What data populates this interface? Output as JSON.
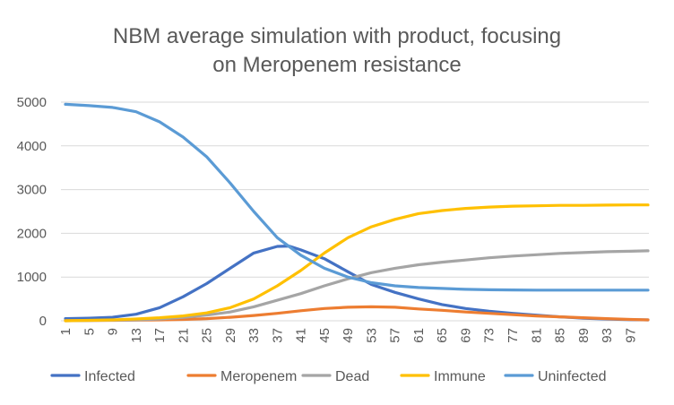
{
  "chart_data": {
    "type": "line",
    "title_lines": [
      "NBM average simulation with product, focusing",
      "on Meropenem resistance"
    ],
    "xlabel": "",
    "ylabel": "",
    "x_range": [
      1,
      100
    ],
    "x_tick_labels": [
      "1",
      "5",
      "9",
      "13",
      "17",
      "21",
      "25",
      "29",
      "33",
      "37",
      "41",
      "45",
      "49",
      "53",
      "57",
      "61",
      "65",
      "69",
      "73",
      "77",
      "81",
      "85",
      "89",
      "93",
      "97"
    ],
    "ylim": [
      0,
      5000
    ],
    "y_tick_labels": [
      "0",
      "1000",
      "2000",
      "3000",
      "4000",
      "5000"
    ],
    "grid": true,
    "legend_position": "bottom",
    "series": [
      {
        "name": "Infected",
        "color": "#4472c4",
        "points": [
          [
            1,
            50
          ],
          [
            5,
            60
          ],
          [
            9,
            80
          ],
          [
            13,
            150
          ],
          [
            17,
            300
          ],
          [
            21,
            550
          ],
          [
            25,
            850
          ],
          [
            29,
            1200
          ],
          [
            33,
            1550
          ],
          [
            37,
            1700
          ],
          [
            39,
            1710
          ],
          [
            41,
            1620
          ],
          [
            45,
            1420
          ],
          [
            49,
            1120
          ],
          [
            53,
            830
          ],
          [
            57,
            650
          ],
          [
            61,
            500
          ],
          [
            65,
            370
          ],
          [
            69,
            280
          ],
          [
            73,
            220
          ],
          [
            77,
            170
          ],
          [
            81,
            130
          ],
          [
            85,
            90
          ],
          [
            89,
            60
          ],
          [
            93,
            40
          ],
          [
            97,
            25
          ],
          [
            100,
            20
          ]
        ]
      },
      {
        "name": "Meropenem",
        "color": "#ed7d31",
        "points": [
          [
            1,
            5
          ],
          [
            9,
            10
          ],
          [
            17,
            20
          ],
          [
            21,
            30
          ],
          [
            25,
            50
          ],
          [
            29,
            80
          ],
          [
            33,
            120
          ],
          [
            37,
            170
          ],
          [
            41,
            230
          ],
          [
            45,
            280
          ],
          [
            49,
            310
          ],
          [
            53,
            320
          ],
          [
            57,
            310
          ],
          [
            61,
            270
          ],
          [
            65,
            240
          ],
          [
            69,
            200
          ],
          [
            73,
            170
          ],
          [
            77,
            140
          ],
          [
            81,
            110
          ],
          [
            85,
            90
          ],
          [
            89,
            70
          ],
          [
            93,
            50
          ],
          [
            97,
            30
          ],
          [
            100,
            20
          ]
        ]
      },
      {
        "name": "Dead",
        "color": "#a5a5a5",
        "points": [
          [
            1,
            0
          ],
          [
            13,
            20
          ],
          [
            17,
            40
          ],
          [
            21,
            80
          ],
          [
            25,
            130
          ],
          [
            29,
            200
          ],
          [
            33,
            320
          ],
          [
            37,
            470
          ],
          [
            41,
            620
          ],
          [
            45,
            800
          ],
          [
            49,
            960
          ],
          [
            53,
            1100
          ],
          [
            57,
            1200
          ],
          [
            61,
            1280
          ],
          [
            65,
            1340
          ],
          [
            69,
            1390
          ],
          [
            73,
            1440
          ],
          [
            77,
            1480
          ],
          [
            81,
            1510
          ],
          [
            85,
            1540
          ],
          [
            89,
            1560
          ],
          [
            93,
            1580
          ],
          [
            97,
            1590
          ],
          [
            100,
            1600
          ]
        ]
      },
      {
        "name": "Immune",
        "color": "#ffc000",
        "points": [
          [
            1,
            0
          ],
          [
            9,
            20
          ],
          [
            13,
            40
          ],
          [
            17,
            70
          ],
          [
            21,
            110
          ],
          [
            25,
            180
          ],
          [
            29,
            300
          ],
          [
            33,
            500
          ],
          [
            37,
            800
          ],
          [
            41,
            1150
          ],
          [
            45,
            1550
          ],
          [
            49,
            1900
          ],
          [
            53,
            2150
          ],
          [
            57,
            2320
          ],
          [
            61,
            2450
          ],
          [
            65,
            2520
          ],
          [
            69,
            2570
          ],
          [
            73,
            2600
          ],
          [
            77,
            2620
          ],
          [
            81,
            2630
          ],
          [
            85,
            2640
          ],
          [
            89,
            2640
          ],
          [
            93,
            2645
          ],
          [
            97,
            2650
          ],
          [
            100,
            2650
          ]
        ]
      },
      {
        "name": "Uninfected",
        "color": "#5b9bd5",
        "points": [
          [
            1,
            4950
          ],
          [
            5,
            4920
          ],
          [
            9,
            4880
          ],
          [
            13,
            4780
          ],
          [
            17,
            4550
          ],
          [
            21,
            4200
          ],
          [
            25,
            3750
          ],
          [
            29,
            3150
          ],
          [
            33,
            2500
          ],
          [
            37,
            1900
          ],
          [
            41,
            1500
          ],
          [
            45,
            1200
          ],
          [
            49,
            1000
          ],
          [
            53,
            870
          ],
          [
            57,
            800
          ],
          [
            61,
            760
          ],
          [
            65,
            740
          ],
          [
            69,
            720
          ],
          [
            73,
            710
          ],
          [
            77,
            705
          ],
          [
            81,
            700
          ],
          [
            85,
            700
          ],
          [
            89,
            700
          ],
          [
            93,
            700
          ],
          [
            97,
            700
          ],
          [
            100,
            700
          ]
        ]
      }
    ]
  }
}
